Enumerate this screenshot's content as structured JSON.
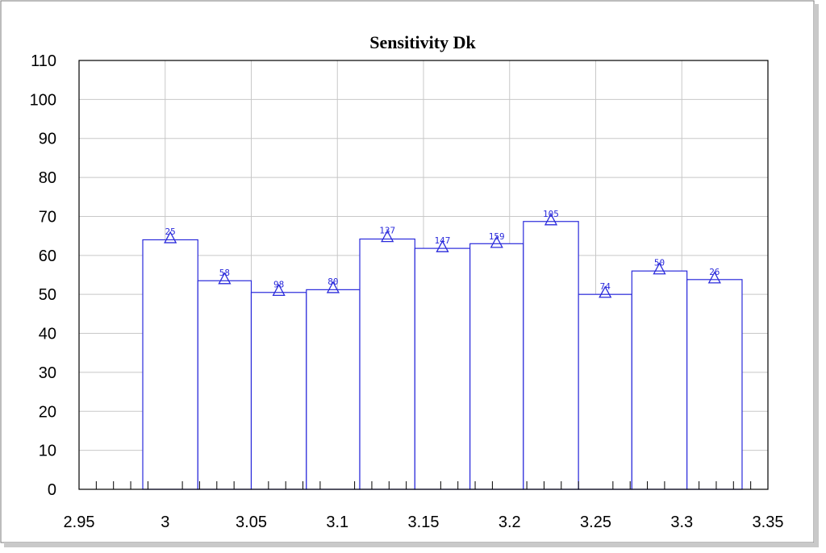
{
  "chart_data": {
    "type": "bar",
    "title": "Sensitivity Dk",
    "xlabel": "",
    "ylabel": "",
    "xlim": [
      2.95,
      3.35
    ],
    "ylim": [
      0,
      110
    ],
    "x_ticks": [
      "2.95",
      "3",
      "3.05",
      "3.1",
      "3.15",
      "3.2",
      "3.25",
      "3.3",
      "3.35"
    ],
    "y_ticks": [
      "0",
      "10",
      "20",
      "30",
      "40",
      "50",
      "60",
      "70",
      "80",
      "90",
      "100",
      "110"
    ],
    "grid": true,
    "bar_color": "#2a2adb",
    "marker_color": "#2a2adb",
    "bars": [
      {
        "x_start": 2.987,
        "x_end": 3.019,
        "value": 64,
        "label": "25",
        "marker": 64.5
      },
      {
        "x_start": 3.019,
        "x_end": 3.05,
        "value": 53.5,
        "label": "58",
        "marker": 54
      },
      {
        "x_start": 3.05,
        "x_end": 3.082,
        "value": 50.5,
        "label": "98",
        "marker": 51
      },
      {
        "x_start": 3.082,
        "x_end": 3.113,
        "value": 51.2,
        "label": "80",
        "marker": 51.7
      },
      {
        "x_start": 3.113,
        "x_end": 3.145,
        "value": 64.2,
        "label": "137",
        "marker": 64.8
      },
      {
        "x_start": 3.145,
        "x_end": 3.177,
        "value": 61.8,
        "label": "147",
        "marker": 62.2
      },
      {
        "x_start": 3.177,
        "x_end": 3.208,
        "value": 63,
        "label": "159",
        "marker": 63.3
      },
      {
        "x_start": 3.208,
        "x_end": 3.24,
        "value": 68.7,
        "label": "105",
        "marker": 69.1
      },
      {
        "x_start": 3.24,
        "x_end": 3.271,
        "value": 50,
        "label": "74",
        "marker": 50.5
      },
      {
        "x_start": 3.271,
        "x_end": 3.303,
        "value": 56,
        "label": "50",
        "marker": 56.5
      },
      {
        "x_start": 3.303,
        "x_end": 3.335,
        "value": 53.8,
        "label": "26",
        "marker": 54.2
      }
    ]
  }
}
